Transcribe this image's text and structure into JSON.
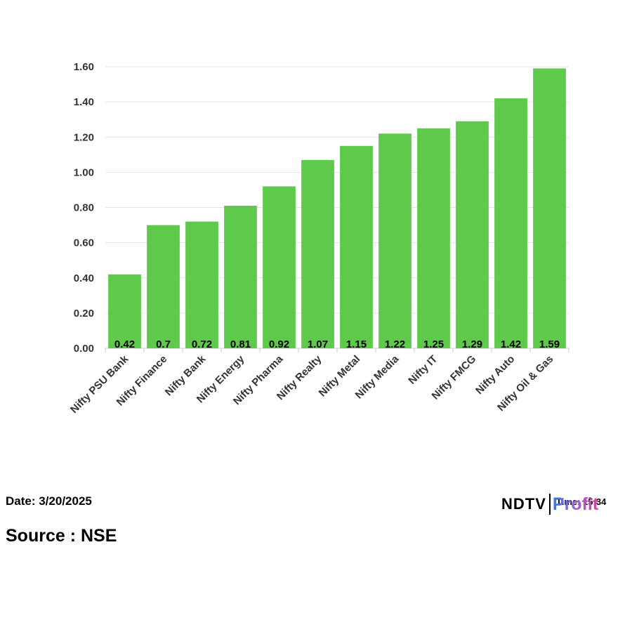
{
  "chart_data": {
    "type": "bar",
    "categories": [
      "Nifty PSU Bank",
      "Nifty Finance",
      "Nifty Bank",
      "Nifty Energy",
      "Nifty Pharma",
      "Nifty Realty",
      "Nifty Metal",
      "Nifty Media",
      "Nifty IT",
      "Nifty FMCG",
      "Nifty Auto",
      "Nifty Oil & Gas"
    ],
    "values": [
      0.42,
      0.7,
      0.72,
      0.81,
      0.92,
      1.07,
      1.15,
      1.22,
      1.25,
      1.29,
      1.42,
      1.59
    ],
    "data_labels": [
      "0.42",
      "0.7",
      "0.72",
      "0.81",
      "0.92",
      "1.07",
      "1.15",
      "1.22",
      "1.25",
      "1.29",
      "1.42",
      "1.59"
    ],
    "y_ticks": [
      "0.00",
      "0.20",
      "0.40",
      "0.60",
      "0.80",
      "1.00",
      "1.20",
      "1.40",
      "1.60"
    ],
    "ylim": [
      0,
      1.6
    ],
    "grid": true,
    "bar_color": "#5ec94a",
    "title": "",
    "xlabel": "",
    "ylabel": ""
  },
  "footer": {
    "date": "Date: 3/20/2025",
    "source": "Source : NSE",
    "time": "Time: 15:34"
  },
  "logo": {
    "ndtv": "NDTV",
    "profit": "Profit"
  }
}
